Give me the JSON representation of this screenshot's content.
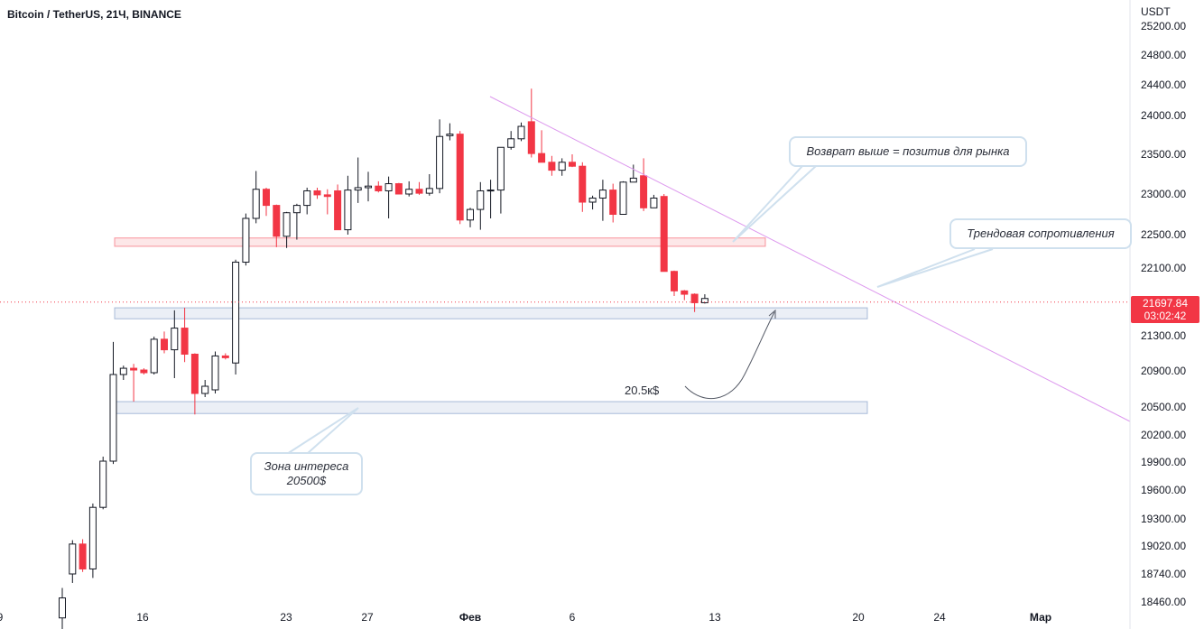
{
  "symbol": {
    "title": "Bitcoin / TetherUS, 21Ч, BINANCE",
    "currency": "USDT"
  },
  "last_price": {
    "value": "21697.84",
    "countdown": "03:02:42",
    "color": "#f23645"
  },
  "chart_data": {
    "type": "candlestick",
    "y_ticks": [
      25200.0,
      24800.0,
      24400.0,
      24000.0,
      23500.0,
      23000.0,
      22500.0,
      22100.0,
      21300.0,
      20900.0,
      20500.0,
      20200.0,
      19900.0,
      19600.0,
      19300.0,
      19020.0,
      18740.0,
      18460.0
    ],
    "x_ticks": [
      "9",
      "16",
      "23",
      "27",
      "Фев",
      "6",
      "13",
      "20",
      "24",
      "Мар"
    ],
    "colors": {
      "up_body": "#ffffff",
      "up_border": "#131722",
      "down": "#f23645",
      "trendline": "#dd99ee",
      "callout_border": "#cfe0ee"
    },
    "candles": [
      {
        "o": 18300,
        "h": 18600,
        "l": 18100,
        "c": 18500
      },
      {
        "o": 18740,
        "h": 19080,
        "l": 18650,
        "c": 19040
      },
      {
        "o": 19040,
        "h": 19090,
        "l": 18760,
        "c": 18790
      },
      {
        "o": 18790,
        "h": 19460,
        "l": 18700,
        "c": 19420
      },
      {
        "o": 19420,
        "h": 19960,
        "l": 19400,
        "c": 19910
      },
      {
        "o": 19910,
        "h": 21230,
        "l": 19880,
        "c": 20860
      },
      {
        "o": 20860,
        "h": 20960,
        "l": 20800,
        "c": 20930
      },
      {
        "o": 20930,
        "h": 20980,
        "l": 20560,
        "c": 20910
      },
      {
        "o": 20910,
        "h": 20930,
        "l": 20860,
        "c": 20880
      },
      {
        "o": 20880,
        "h": 21290,
        "l": 20860,
        "c": 21260
      },
      {
        "o": 21260,
        "h": 21350,
        "l": 21100,
        "c": 21140
      },
      {
        "o": 21140,
        "h": 21600,
        "l": 20820,
        "c": 21390
      },
      {
        "o": 21390,
        "h": 21630,
        "l": 21000,
        "c": 21090
      },
      {
        "o": 21090,
        "h": 21100,
        "l": 20420,
        "c": 20650
      },
      {
        "o": 20650,
        "h": 20800,
        "l": 20610,
        "c": 20730
      },
      {
        "o": 20690,
        "h": 21120,
        "l": 20650,
        "c": 21070
      },
      {
        "o": 21070,
        "h": 21100,
        "l": 21030,
        "c": 21050
      },
      {
        "o": 20990,
        "h": 22200,
        "l": 20860,
        "c": 22170
      },
      {
        "o": 22170,
        "h": 22760,
        "l": 22130,
        "c": 22700
      },
      {
        "o": 22700,
        "h": 23290,
        "l": 22640,
        "c": 23060
      },
      {
        "o": 23060,
        "h": 23080,
        "l": 22730,
        "c": 22860
      },
      {
        "o": 22860,
        "h": 22870,
        "l": 22350,
        "c": 22480
      },
      {
        "o": 22480,
        "h": 22780,
        "l": 22340,
        "c": 22770
      },
      {
        "o": 22770,
        "h": 22880,
        "l": 22440,
        "c": 22860
      },
      {
        "o": 22860,
        "h": 23080,
        "l": 22750,
        "c": 23040
      },
      {
        "o": 23040,
        "h": 23080,
        "l": 22940,
        "c": 22990
      },
      {
        "o": 22990,
        "h": 23060,
        "l": 22750,
        "c": 22970
      },
      {
        "o": 23040,
        "h": 23120,
        "l": 22560,
        "c": 22560
      },
      {
        "o": 22560,
        "h": 23230,
        "l": 22500,
        "c": 23050
      },
      {
        "o": 23050,
        "h": 23460,
        "l": 22890,
        "c": 23080
      },
      {
        "o": 23080,
        "h": 23280,
        "l": 22910,
        "c": 23100
      },
      {
        "o": 23100,
        "h": 23160,
        "l": 23020,
        "c": 23040
      },
      {
        "o": 23040,
        "h": 23220,
        "l": 22700,
        "c": 23130
      },
      {
        "o": 23130,
        "h": 23140,
        "l": 23020,
        "c": 23000
      },
      {
        "o": 23000,
        "h": 23160,
        "l": 22970,
        "c": 23060
      },
      {
        "o": 23060,
        "h": 23150,
        "l": 22990,
        "c": 23010
      },
      {
        "o": 23010,
        "h": 23250,
        "l": 22980,
        "c": 23070
      },
      {
        "o": 23070,
        "h": 23950,
        "l": 23010,
        "c": 23730
      },
      {
        "o": 23740,
        "h": 23900,
        "l": 23680,
        "c": 23760
      },
      {
        "o": 23760,
        "h": 23800,
        "l": 22630,
        "c": 22680
      },
      {
        "o": 22680,
        "h": 22830,
        "l": 22590,
        "c": 22810
      },
      {
        "o": 22810,
        "h": 23150,
        "l": 22560,
        "c": 23040
      },
      {
        "o": 23040,
        "h": 23180,
        "l": 22700,
        "c": 23050
      },
      {
        "o": 23050,
        "h": 23590,
        "l": 22760,
        "c": 23590
      },
      {
        "o": 23590,
        "h": 23800,
        "l": 23560,
        "c": 23700
      },
      {
        "o": 23700,
        "h": 23910,
        "l": 23670,
        "c": 23860
      },
      {
        "o": 23920,
        "h": 24350,
        "l": 23460,
        "c": 23510
      },
      {
        "o": 23510,
        "h": 23810,
        "l": 23450,
        "c": 23400
      },
      {
        "o": 23400,
        "h": 23480,
        "l": 23230,
        "c": 23300
      },
      {
        "o": 23300,
        "h": 23450,
        "l": 23230,
        "c": 23400
      },
      {
        "o": 23400,
        "h": 23500,
        "l": 23340,
        "c": 23350
      },
      {
        "o": 23350,
        "h": 23400,
        "l": 22780,
        "c": 22900
      },
      {
        "o": 22900,
        "h": 22980,
        "l": 22810,
        "c": 22950
      },
      {
        "o": 22950,
        "h": 23180,
        "l": 22670,
        "c": 23050
      },
      {
        "o": 23050,
        "h": 23130,
        "l": 22650,
        "c": 22750
      },
      {
        "o": 22750,
        "h": 23160,
        "l": 22750,
        "c": 23150
      },
      {
        "o": 23150,
        "h": 23370,
        "l": 23150,
        "c": 23200
      },
      {
        "o": 23230,
        "h": 23450,
        "l": 22790,
        "c": 22830
      },
      {
        "o": 22830,
        "h": 22990,
        "l": 22830,
        "c": 22950
      },
      {
        "o": 22970,
        "h": 23000,
        "l": 22060,
        "c": 22060
      },
      {
        "o": 22060,
        "h": 22070,
        "l": 21770,
        "c": 21830
      },
      {
        "o": 21830,
        "h": 21840,
        "l": 21720,
        "c": 21790
      },
      {
        "o": 21790,
        "h": 21800,
        "l": 21580,
        "c": 21690
      },
      {
        "o": 21690,
        "h": 21790,
        "l": 21680,
        "c": 21740
      }
    ],
    "zones": [
      {
        "label": "resistance-zone",
        "high": 22460,
        "low": 22360,
        "color": "#f23645"
      },
      {
        "label": "support-zone",
        "high": 21630,
        "low": 21500,
        "color": "#5b7fb8"
      },
      {
        "label": "interest-zone",
        "high": 20560,
        "low": 20430,
        "color": "#5b7fb8"
      }
    ],
    "annotations": {
      "target_label": "20.5к$",
      "callout_return": "Возврат выше = позитив для рынка",
      "callout_trend": "Трендовая сопротивления",
      "callout_zone_line1": "Зона интереса",
      "callout_zone_line2": "20500$"
    }
  }
}
